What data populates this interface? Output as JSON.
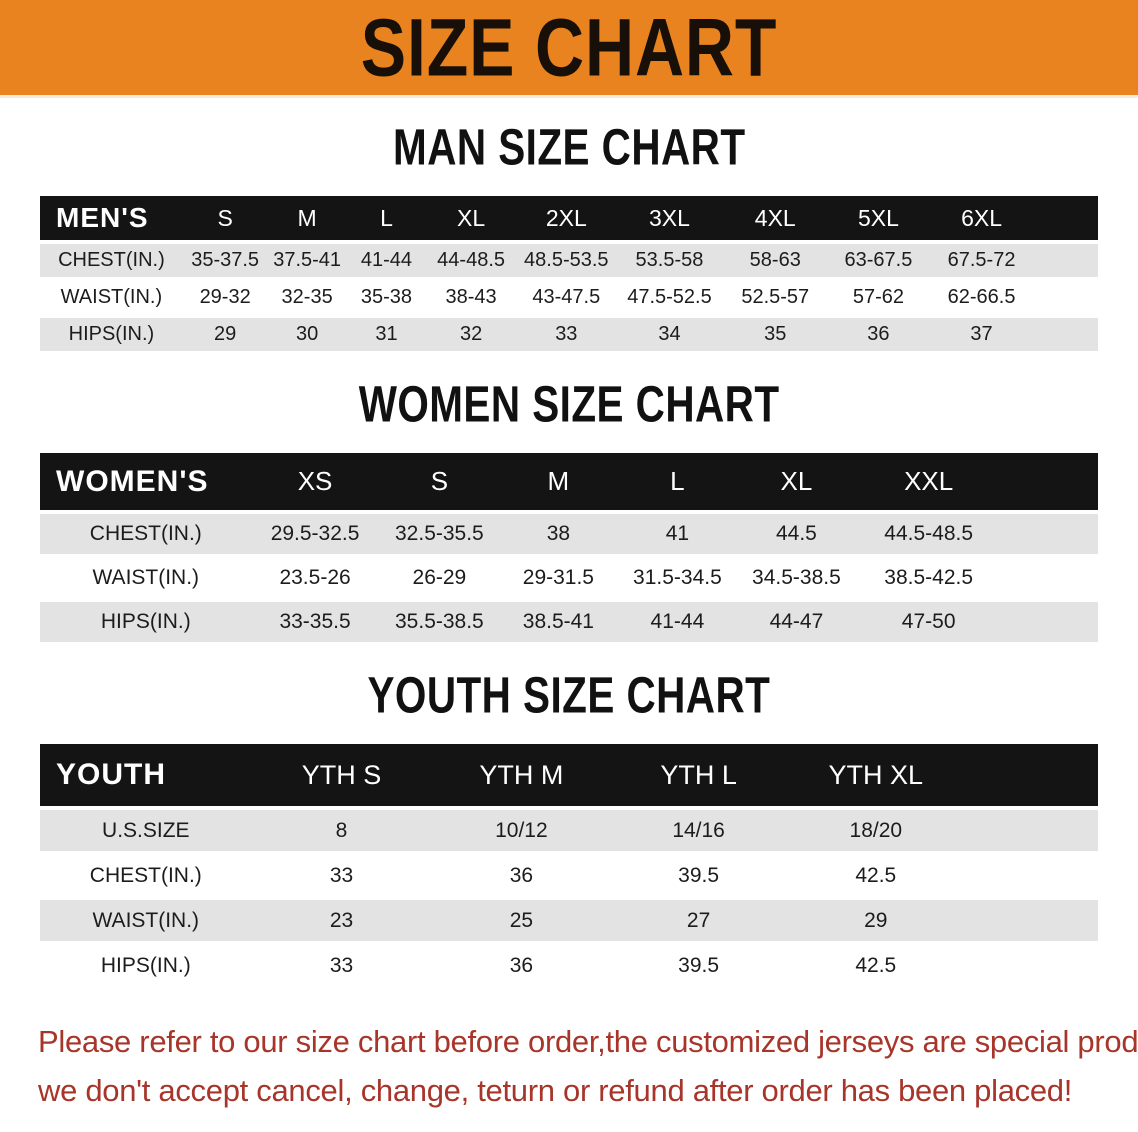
{
  "banner": {
    "title": "SIZE CHART"
  },
  "colors": {
    "banner_bg": "#e8831f",
    "table_header_bg": "#141414",
    "table_header_text": "#ffffff",
    "row_alt_bg": "#e3e3e3",
    "heading_text": "#111111",
    "footer_text": "#a8352a"
  },
  "tables": [
    {
      "id": "men",
      "heading": "MAN SIZE CHART",
      "label": "MEN'S",
      "columns": [
        "S",
        "M",
        "L",
        "XL",
        "2XL",
        "3XL",
        "4XL",
        "5XL",
        "6XL"
      ],
      "rows": [
        {
          "label": "CHEST(IN.)",
          "values": [
            "35-37.5",
            "37.5-41",
            "41-44",
            "44-48.5",
            "48.5-53.5",
            "53.5-58",
            "58-63",
            "63-67.5",
            "67.5-72"
          ]
        },
        {
          "label": "WAIST(IN.)",
          "values": [
            "29-32",
            "32-35",
            "35-38",
            "38-43",
            "43-47.5",
            "47.5-52.5",
            "52.5-57",
            "57-62",
            "62-66.5"
          ]
        },
        {
          "label": "HIPS(IN.)",
          "values": [
            "29",
            "30",
            "31",
            "32",
            "33",
            "34",
            "35",
            "36",
            "37"
          ]
        }
      ]
    },
    {
      "id": "women",
      "heading": "WOMEN SIZE CHART",
      "label": "WOMEN'S",
      "columns": [
        "XS",
        "S",
        "M",
        "L",
        "XL",
        "XXL"
      ],
      "rows": [
        {
          "label": "CHEST(IN.)",
          "values": [
            "29.5-32.5",
            "32.5-35.5",
            "38",
            "41",
            "44.5",
            "44.5-48.5"
          ]
        },
        {
          "label": "WAIST(IN.)",
          "values": [
            "23.5-26",
            "26-29",
            "29-31.5",
            "31.5-34.5",
            "34.5-38.5",
            "38.5-42.5"
          ]
        },
        {
          "label": "HIPS(IN.)",
          "values": [
            "33-35.5",
            "35.5-38.5",
            "38.5-41",
            "41-44",
            "44-47",
            "47-50"
          ]
        }
      ]
    },
    {
      "id": "youth",
      "heading": "YOUTH SIZE CHART",
      "label": "YOUTH",
      "columns": [
        "YTH S",
        "YTH M",
        "YTH L",
        "YTH XL"
      ],
      "rows": [
        {
          "label": "U.S.SIZE",
          "values": [
            "8",
            "10/12",
            "14/16",
            "18/20"
          ]
        },
        {
          "label": "CHEST(IN.)",
          "values": [
            "33",
            "36",
            "39.5",
            "42.5"
          ]
        },
        {
          "label": "WAIST(IN.)",
          "values": [
            "23",
            "25",
            "27",
            "29"
          ]
        },
        {
          "label": "HIPS(IN.)",
          "values": [
            "33",
            "36",
            "39.5",
            "42.5"
          ]
        }
      ]
    }
  ],
  "footer": {
    "line1": "Please refer to our size chart before order,the customized jerseys are special products,",
    "line2": "we don't accept cancel, change, teturn or refund after order has been placed!"
  }
}
